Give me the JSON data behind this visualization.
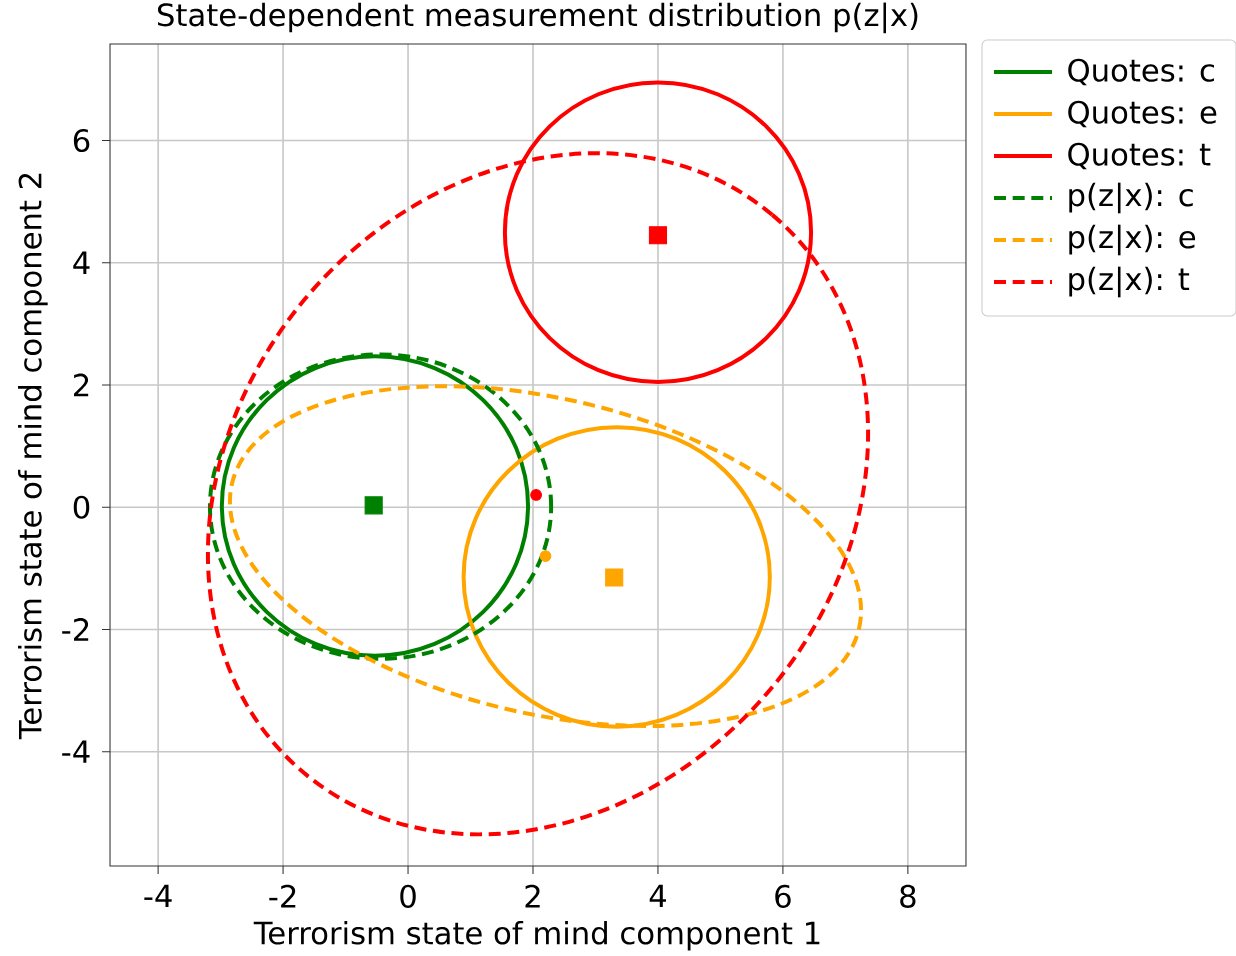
{
  "chart_data": {
    "type": "scatter",
    "title": "State-dependent measurement distribution p(z|x)",
    "xlabel": "Terrorism state of mind component 1",
    "ylabel": "Terrorism state of mind component 2",
    "xlim": [
      -4.77,
      8.93
    ],
    "ylim": [
      -5.87,
      7.58
    ],
    "xticks": [
      -4,
      -2,
      0,
      2,
      4,
      6,
      8
    ],
    "yticks": [
      -4,
      -2,
      0,
      2,
      4,
      6
    ],
    "grid": true,
    "annotations": [
      "Quotes: c",
      "Quotes: e",
      "Quotes: t",
      "p(z|x): c",
      "p(z|x): e",
      "p(z|x): t"
    ],
    "series": [
      {
        "marker": "square",
        "color": "#008000",
        "x": [
          -0.55
        ],
        "values": [
          0.03
        ]
      },
      {
        "marker": "square",
        "color": "#ffa500",
        "x": [
          3.3
        ],
        "values": [
          -1.15
        ]
      },
      {
        "marker": "square",
        "color": "#ff0000",
        "x": [
          4.0
        ],
        "values": [
          4.45
        ]
      },
      {
        "marker": "circle",
        "color": "#ff0000",
        "x": [
          2.05
        ],
        "values": [
          0.2
        ]
      },
      {
        "marker": "circle",
        "color": "#ffa500",
        "x": [
          2.2
        ],
        "values": [
          -0.8
        ]
      }
    ]
  }
}
